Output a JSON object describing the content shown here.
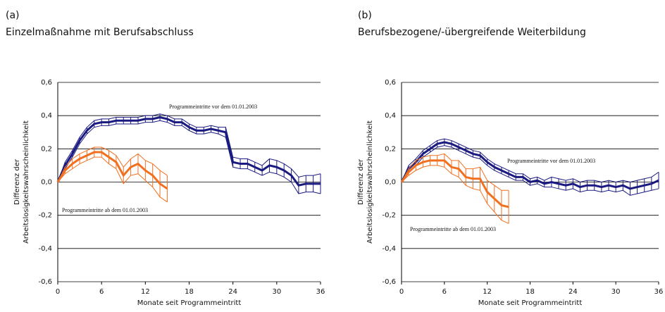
{
  "chart_data": [
    {
      "type": "line",
      "panel": "(a)",
      "title": "Einzelmaßnahme mit Berufsabschluss",
      "y_label": [
        "Differenz der",
        "Arbeitslosigkeitswahrscheinlichkeit"
      ],
      "x_label": "Monate seit Programmeintritt",
      "x": [
        0,
        1,
        2,
        3,
        4,
        5,
        6,
        7,
        8,
        9,
        10,
        11,
        12,
        13,
        14,
        15,
        16,
        17,
        18,
        19,
        20,
        21,
        22,
        23,
        24,
        25,
        26,
        27,
        28,
        29,
        30,
        31,
        32,
        33,
        34,
        35,
        36
      ],
      "xlim": [
        0,
        36
      ],
      "xticks": [
        0,
        6,
        12,
        18,
        24,
        30,
        36
      ],
      "ylim": [
        -0.6,
        0.6
      ],
      "yticks": [
        {
          "value": -0.6,
          "label": "-0,6"
        },
        {
          "value": -0.4,
          "label": "-0,4"
        },
        {
          "value": -0.2,
          "label": "-0,2"
        },
        {
          "value": 0,
          "label": "0,0"
        },
        {
          "value": 0.2,
          "label": "0,2"
        },
        {
          "value": 0.4,
          "label": "0,4"
        },
        {
          "value": 0.6,
          "label": "0,6"
        }
      ],
      "grid": true,
      "series": [
        {
          "color": "#1a1a80",
          "values": [
            0,
            0.1,
            0.17,
            0.25,
            0.31,
            0.35,
            0.36,
            0.36,
            0.37,
            0.37,
            0.37,
            0.37,
            0.38,
            0.38,
            0.39,
            0.38,
            0.36,
            0.36,
            0.33,
            0.31,
            0.31,
            0.32,
            0.31,
            0.3,
            0.12,
            0.11,
            0.11,
            0.09,
            0.07,
            0.1,
            0.09,
            0.07,
            0.04,
            -0.02,
            -0.01,
            -0.01,
            -0.01
          ],
          "errors": [
            0,
            0.02,
            0.02,
            0.02,
            0.02,
            0.02,
            0.02,
            0.02,
            0.02,
            0.02,
            0.02,
            0.02,
            0.02,
            0.02,
            0.02,
            0.02,
            0.02,
            0.02,
            0.02,
            0.02,
            0.02,
            0.02,
            0.02,
            0.03,
            0.03,
            0.03,
            0.03,
            0.03,
            0.03,
            0.04,
            0.04,
            0.04,
            0.04,
            0.05,
            0.05,
            0.05,
            0.06
          ]
        },
        {
          "color": "#f07020",
          "values": [
            0,
            0.07,
            0.11,
            0.14,
            0.16,
            0.18,
            0.18,
            0.15,
            0.12,
            0.04,
            0.09,
            0.11,
            0.07,
            0.04,
            -0.01,
            -0.04,
            null,
            null,
            null,
            null,
            null,
            null,
            null,
            null,
            null,
            null,
            null,
            null,
            null,
            null,
            null,
            null,
            null,
            null,
            null,
            null,
            null
          ],
          "errors": [
            0,
            0.02,
            0.03,
            0.03,
            0.03,
            0.03,
            0.03,
            0.04,
            0.04,
            0.05,
            0.05,
            0.06,
            0.06,
            0.07,
            0.08,
            0.08,
            null,
            null,
            null,
            null,
            null,
            null,
            null,
            null,
            null,
            null,
            null,
            null,
            null,
            null,
            null,
            null,
            null,
            null,
            null,
            null,
            null
          ]
        }
      ],
      "annotations": [
        "Programmeintritte vor dem 01.01.2003",
        "Programmeintritte ab dem 01.01.2003"
      ]
    },
    {
      "type": "line",
      "panel": "(b)",
      "title": "Berufsbezogene/-übergreifende Weiterbildung",
      "y_label": [
        "Differenz der",
        "Arbeitslosigkeitswahrscheinlichkeit"
      ],
      "x_label": "Monate seit Programmeintritt",
      "x": [
        0,
        1,
        2,
        3,
        4,
        5,
        6,
        7,
        8,
        9,
        10,
        11,
        12,
        13,
        14,
        15,
        16,
        17,
        18,
        19,
        20,
        21,
        22,
        23,
        24,
        25,
        26,
        27,
        28,
        29,
        30,
        31,
        32,
        33,
        34,
        35,
        36
      ],
      "xlim": [
        0,
        36
      ],
      "xticks": [
        0,
        6,
        12,
        18,
        24,
        30,
        36
      ],
      "ylim": [
        -0.6,
        0.6
      ],
      "yticks": [
        {
          "value": -0.6,
          "label": "-0,6"
        },
        {
          "value": -0.4,
          "label": "-0,4"
        },
        {
          "value": -0.2,
          "label": "-0,2"
        },
        {
          "value": 0,
          "label": "0,0"
        },
        {
          "value": 0.2,
          "label": "0,2"
        },
        {
          "value": 0.4,
          "label": "0,4"
        },
        {
          "value": 0.6,
          "label": "0,6"
        }
      ],
      "grid": true,
      "series": [
        {
          "color": "#1a1a80",
          "values": [
            0,
            0.08,
            0.12,
            0.17,
            0.2,
            0.23,
            0.24,
            0.23,
            0.21,
            0.19,
            0.17,
            0.16,
            0.12,
            0.09,
            0.07,
            0.05,
            0.03,
            0.03,
            0,
            0.01,
            -0.01,
            0,
            -0.01,
            -0.02,
            -0.01,
            -0.03,
            -0.02,
            -0.02,
            -0.03,
            -0.02,
            -0.03,
            -0.02,
            -0.04,
            -0.03,
            -0.02,
            -0.01,
            0.01
          ],
          "errors": [
            0,
            0.02,
            0.02,
            0.02,
            0.02,
            0.02,
            0.02,
            0.02,
            0.02,
            0.02,
            0.02,
            0.02,
            0.02,
            0.02,
            0.02,
            0.02,
            0.02,
            0.02,
            0.02,
            0.02,
            0.02,
            0.03,
            0.03,
            0.03,
            0.03,
            0.03,
            0.03,
            0.03,
            0.03,
            0.03,
            0.03,
            0.03,
            0.04,
            0.04,
            0.04,
            0.04,
            0.05
          ]
        },
        {
          "color": "#f07020",
          "values": [
            0,
            0.06,
            0.1,
            0.12,
            0.13,
            0.13,
            0.13,
            0.09,
            0.08,
            0.03,
            0.02,
            0.02,
            -0.06,
            -0.1,
            -0.14,
            -0.15,
            null,
            null,
            null,
            null,
            null,
            null,
            null,
            null,
            null,
            null,
            null,
            null,
            null,
            null,
            null,
            null,
            null,
            null,
            null,
            null,
            null
          ],
          "errors": [
            0,
            0.02,
            0.03,
            0.03,
            0.03,
            0.03,
            0.04,
            0.04,
            0.05,
            0.05,
            0.06,
            0.07,
            0.07,
            0.08,
            0.09,
            0.1,
            null,
            null,
            null,
            null,
            null,
            null,
            null,
            null,
            null,
            null,
            null,
            null,
            null,
            null,
            null,
            null,
            null,
            null,
            null,
            null,
            null
          ]
        }
      ],
      "annotations": [
        "Programmeintritte vor dem 01.01.2003",
        "Programmeintritte ab dem 01.01.2003"
      ]
    }
  ]
}
